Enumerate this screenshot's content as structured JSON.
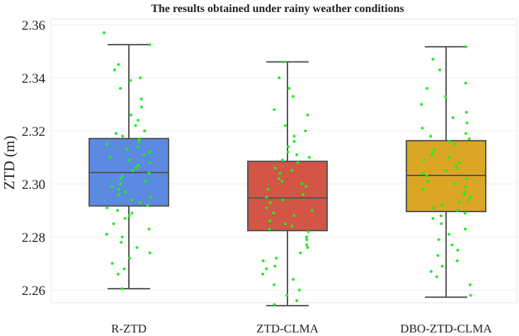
{
  "chart_data": {
    "type": "box",
    "title": "The results obtained under rainy weather conditions",
    "xlabel": "",
    "ylabel": "ZTD (m)",
    "ylim": [
      2.252,
      2.362
    ],
    "yticks": [
      "2.26",
      "2.28",
      "2.30",
      "2.32",
      "2.34",
      "2.36"
    ],
    "grid": true,
    "categories": [
      "R-ZTD",
      "ZTD-CLMA",
      "DBO-ZTD-CLMA"
    ],
    "colors": [
      "#5b8ae0",
      "#d25545",
      "#dba624"
    ],
    "point_color": "#22ee22",
    "boxes": [
      {
        "name": "R-ZTD",
        "whisker_low": 2.2605,
        "q1": 2.2917,
        "median": 2.3043,
        "q3": 2.3171,
        "whisker_high": 2.3525
      },
      {
        "name": "ZTD-CLMA",
        "whisker_low": 2.2541,
        "q1": 2.2824,
        "median": 2.2947,
        "q3": 2.3085,
        "whisker_high": 2.346
      },
      {
        "name": "DBO-ZTD-CLMA",
        "whisker_low": 2.2573,
        "q1": 2.2896,
        "median": 2.3032,
        "q3": 2.3163,
        "whisker_high": 2.3517
      }
    ],
    "points": [
      [
        2.357,
        2.3525,
        2.345,
        2.343,
        2.34,
        2.339,
        2.336,
        2.332,
        2.329,
        2.326,
        2.324,
        2.322,
        2.32,
        2.319,
        2.318,
        2.317,
        2.316,
        2.315,
        2.314,
        2.313,
        2.312,
        2.311,
        2.31,
        2.309,
        2.308,
        2.307,
        2.306,
        2.305,
        2.304,
        2.304,
        2.303,
        2.302,
        2.301,
        2.3,
        2.299,
        2.298,
        2.297,
        2.296,
        2.295,
        2.294,
        2.293,
        2.292,
        2.291,
        2.29,
        2.289,
        2.288,
        2.287,
        2.285,
        2.283,
        2.281,
        2.28,
        2.278,
        2.276,
        2.274,
        2.272,
        2.27,
        2.268,
        2.266,
        2.2605
      ],
      [
        2.346,
        2.34,
        2.336,
        2.333,
        2.328,
        2.326,
        2.322,
        2.32,
        2.318,
        2.316,
        2.314,
        2.312,
        2.311,
        2.31,
        2.309,
        2.308,
        2.306,
        2.305,
        2.304,
        2.302,
        2.301,
        2.3,
        2.299,
        2.298,
        2.296,
        2.295,
        2.294,
        2.293,
        2.291,
        2.29,
        2.289,
        2.288,
        2.286,
        2.285,
        2.284,
        2.283,
        2.282,
        2.28,
        2.279,
        2.277,
        2.276,
        2.274,
        2.272,
        2.271,
        2.269,
        2.268,
        2.266,
        2.264,
        2.262,
        2.26,
        2.258,
        2.256,
        2.2545
      ],
      [
        2.3517,
        2.347,
        2.343,
        2.338,
        2.336,
        2.333,
        2.33,
        2.327,
        2.325,
        2.323,
        2.321,
        2.319,
        2.318,
        2.317,
        2.316,
        2.315,
        2.313,
        2.312,
        2.311,
        2.31,
        2.309,
        2.308,
        2.307,
        2.306,
        2.305,
        2.304,
        2.303,
        2.302,
        2.301,
        2.3,
        2.299,
        2.298,
        2.297,
        2.296,
        2.295,
        2.294,
        2.293,
        2.292,
        2.291,
        2.29,
        2.289,
        2.288,
        2.287,
        2.285,
        2.283,
        2.281,
        2.279,
        2.277,
        2.275,
        2.273,
        2.271,
        2.269,
        2.267,
        2.265,
        2.262,
        2.258
      ]
    ]
  }
}
